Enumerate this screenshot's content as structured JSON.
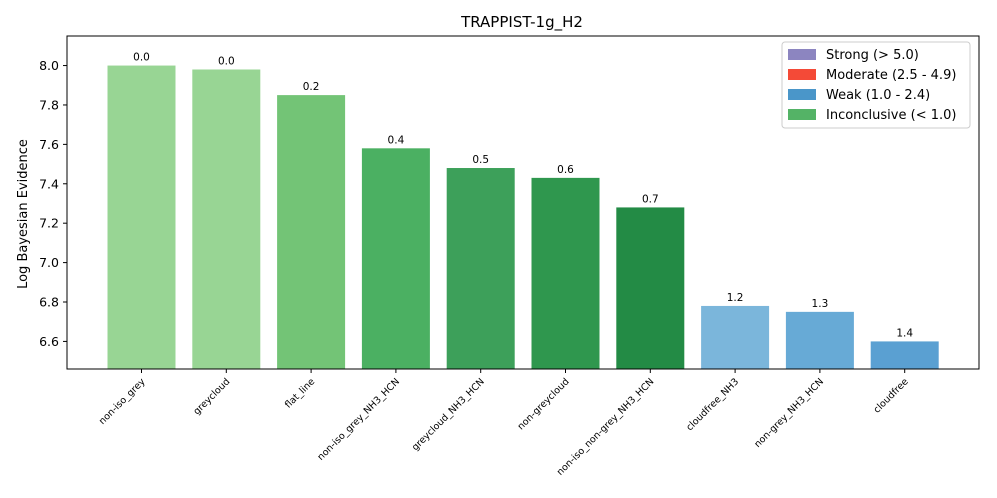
{
  "chart_data": {
    "type": "bar",
    "title": "TRAPPIST-1g_H2",
    "xlabel": "",
    "ylabel": "Log Bayesian Evidence",
    "ylim": [
      6.46,
      8.15
    ],
    "yticks": [
      "6.6",
      "6.8",
      "7.0",
      "7.2",
      "7.4",
      "7.6",
      "7.8",
      "8.0"
    ],
    "grid": false,
    "legend_position": "top-right",
    "categories": [
      "non-iso_grey",
      "greycloud",
      "flat_line",
      "non-iso_grey_NH3_HCN",
      "greycloud_NH3_HCN",
      "non-greycloud",
      "non-iso_non-grey_NH3_HCN",
      "cloudfree_NH3",
      "non-grey_NH3_HCN",
      "cloudfree"
    ],
    "values": [
      8.0,
      7.98,
      7.85,
      7.58,
      7.48,
      7.43,
      7.28,
      6.78,
      6.75,
      6.6
    ],
    "bar_labels": [
      "0.0",
      "0.0",
      "0.2",
      "0.4",
      "0.5",
      "0.6",
      "0.7",
      "1.2",
      "1.3",
      "1.4"
    ],
    "bar_colors": [
      "#98d594",
      "#98d594",
      "#73c476",
      "#4bb062",
      "#3da05a",
      "#2f974e",
      "#238b45",
      "#7bb6db",
      "#67aad6",
      "#5aa0d2"
    ],
    "legend": [
      {
        "label": "Strong (> 5.0)",
        "color": "#8c85c0"
      },
      {
        "label": "Moderate (2.5 - 4.9)",
        "color": "#f44a37"
      },
      {
        "label": "Weak (1.0 - 2.4)",
        "color": "#4a96c9"
      },
      {
        "label": "Inconclusive (< 1.0)",
        "color": "#54b366"
      }
    ]
  }
}
